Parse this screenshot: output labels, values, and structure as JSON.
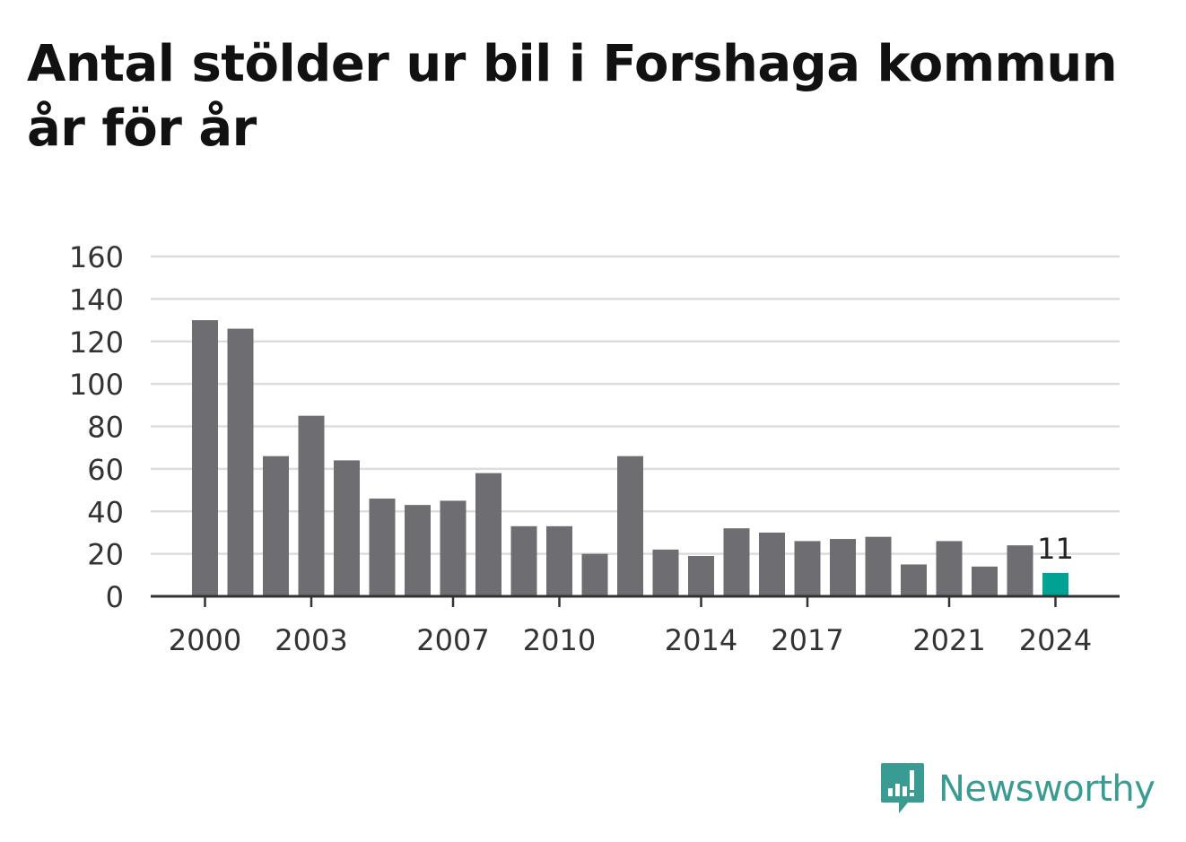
{
  "header": {
    "title_line1": "Antal stölder ur bil i Forshaga kommun",
    "title_line2": "år för år"
  },
  "brand": {
    "name": "Newsworthy",
    "icon": "newsworthy-logo-icon",
    "color": "#3a9b93"
  },
  "chart_data": {
    "type": "bar",
    "title": "Antal stölder ur bil i Forshaga kommun år för år",
    "xlabel": "",
    "ylabel": "",
    "categories": [
      "2000",
      "2001",
      "2002",
      "2003",
      "2004",
      "2005",
      "2006",
      "2007",
      "2008",
      "2009",
      "2010",
      "2011",
      "2012",
      "2013",
      "2014",
      "2015",
      "2016",
      "2017",
      "2018",
      "2019",
      "2020",
      "2021",
      "2022",
      "2023",
      "2024"
    ],
    "values": [
      130,
      126,
      66,
      85,
      64,
      46,
      43,
      45,
      58,
      33,
      33,
      20,
      66,
      22,
      19,
      32,
      30,
      26,
      27,
      28,
      15,
      26,
      14,
      24,
      11
    ],
    "ylim": [
      0,
      160
    ],
    "yticks": [
      0,
      20,
      40,
      60,
      80,
      100,
      120,
      140,
      160
    ],
    "xtick_labels": [
      "2000",
      "2003",
      "2007",
      "2010",
      "2014",
      "2017",
      "2021",
      "2024"
    ],
    "highlight": {
      "category": "2024",
      "label": "11"
    },
    "grid": true,
    "colors": {
      "bar": "#6e6d72",
      "highlight": "#00a294",
      "grid": "#dddddd",
      "axis": "#333333"
    }
  }
}
